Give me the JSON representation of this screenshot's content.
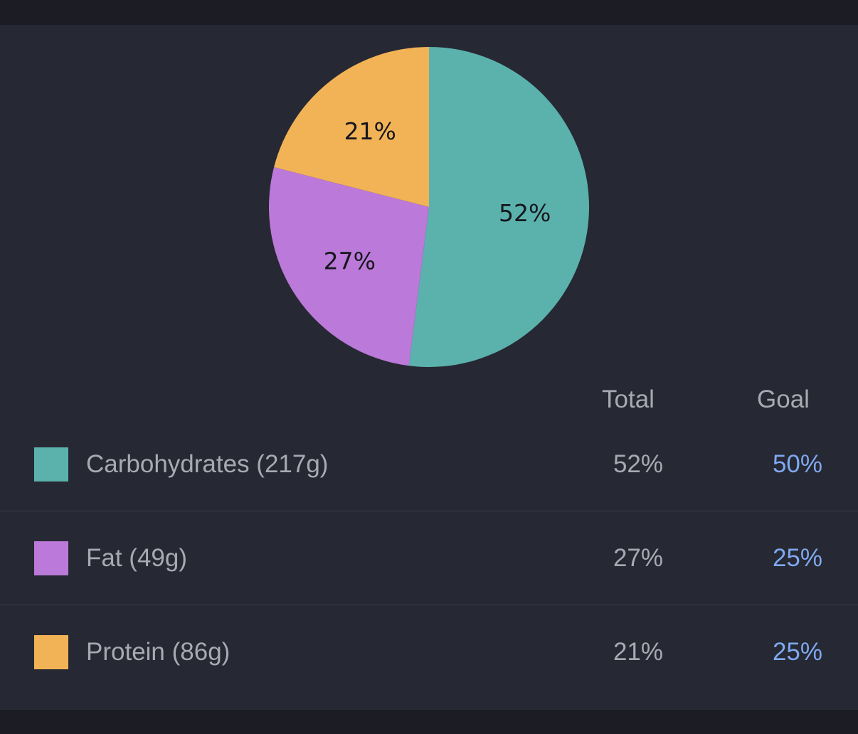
{
  "chart_data": {
    "type": "pie",
    "slices": [
      {
        "label": "Carbohydrates",
        "value": 52,
        "value_label": "52%",
        "color": "#5bb2ad"
      },
      {
        "label": "Fat",
        "value": 27,
        "value_label": "27%",
        "color": "#bb79d9"
      },
      {
        "label": "Protein",
        "value": 21,
        "value_label": "21%",
        "color": "#f2b357"
      }
    ],
    "start_angle_deg": 0,
    "direction": "clockwise"
  },
  "table": {
    "headers": {
      "total": "Total",
      "goal": "Goal"
    },
    "rows": [
      {
        "label": "Carbohydrates (217g)",
        "total": "52%",
        "goal": "50%",
        "color": "#5bb2ad"
      },
      {
        "label": "Fat (49g)",
        "total": "27%",
        "goal": "25%",
        "color": "#bb79d9"
      },
      {
        "label": "Protein (86g)",
        "total": "21%",
        "goal": "25%",
        "color": "#f2b357"
      }
    ]
  },
  "colors": {
    "background": "#1b1c24",
    "panel": "#262833",
    "text": "#a9a9b2",
    "goal_accent": "#7fa9f0"
  }
}
